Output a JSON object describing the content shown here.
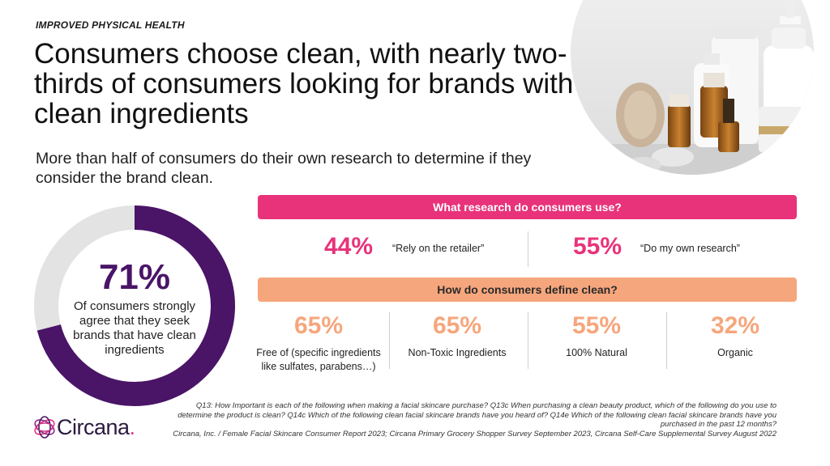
{
  "header": {
    "eyebrow": "IMPROVED PHYSICAL HEALTH",
    "title": "Consumers choose clean, with nearly two-thirds of consumers looking for brands with clean ingredients",
    "subtitle": "More than half of consumers do their own research to determine if they consider the brand clean."
  },
  "donut": {
    "percent_label": "71%",
    "value": 0.71,
    "description": "Of consumers strongly agree that they seek brands that have clean ingredients",
    "color_fill": "#4a1467",
    "color_track": "#e3e3e3"
  },
  "research": {
    "heading": "What research do consumers use?",
    "items": [
      {
        "value": "44%",
        "label": "“Rely on the retailer”"
      },
      {
        "value": "55%",
        "label": "“Do my own research”"
      }
    ]
  },
  "define": {
    "heading": "How do consumers define clean?",
    "items": [
      {
        "value": "65%",
        "label": "Free of (specific ingredients like sulfates, parabens…)"
      },
      {
        "value": "65%",
        "label": "Non-Toxic Ingredients"
      },
      {
        "value": "55%",
        "label": "100% Natural"
      },
      {
        "value": "32%",
        "label": "Organic"
      }
    ]
  },
  "footnote": {
    "line1": "Q13: How Important is each of the following when making a facial skincare purchase? Q13c When purchasing a clean beauty product, which of the following do you use to determine the product is clean? Q14c Which of the following clean facial skincare brands have you heard of? Q14e Which of the following clean facial skincare brands have you purchased in the past 12 months?",
    "line2": "Circana, Inc. / Female Facial Skincare Consumer Report 2023; Circana Primary Grocery Shopper Survey September 2023, Circana Self-Care Supplemental Survey August 2022"
  },
  "logo": {
    "name": "Circana",
    "dot": "."
  },
  "colors": {
    "pink": "#e8337a",
    "orange": "#f6a67c",
    "purple": "#4a1467"
  }
}
